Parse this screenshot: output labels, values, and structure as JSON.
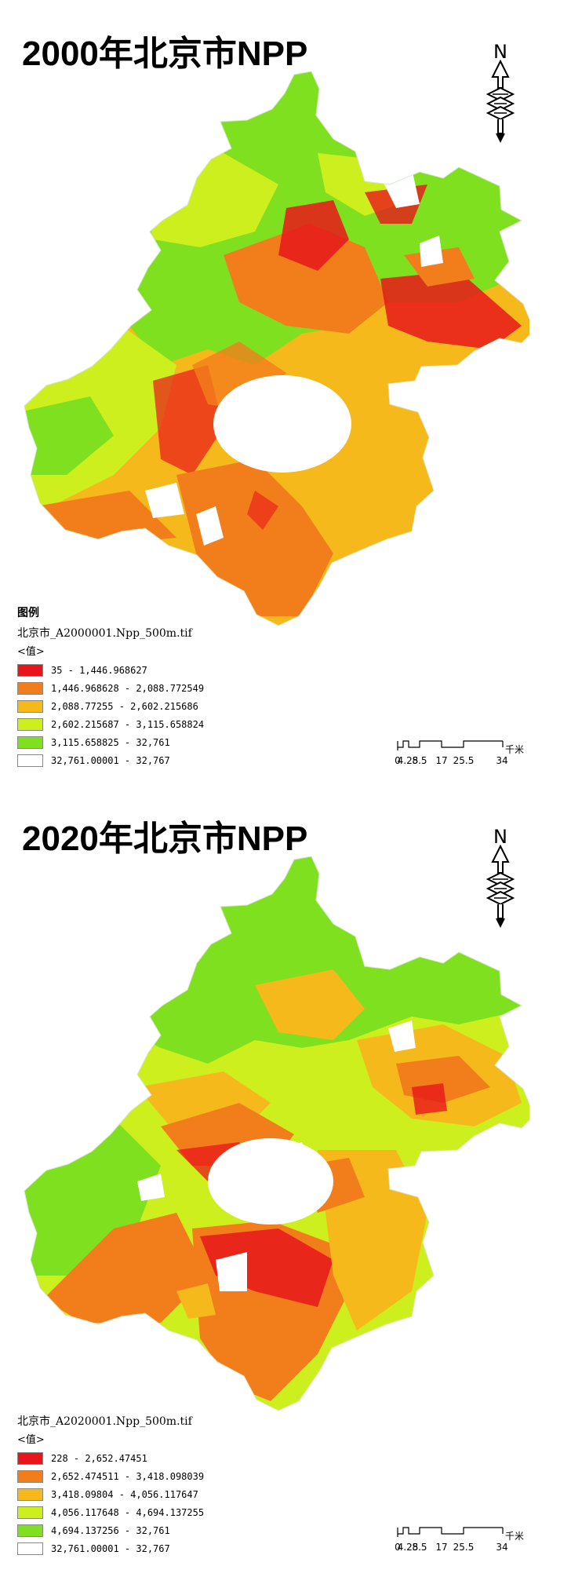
{
  "panels": [
    {
      "title": "2000年北京市NPP",
      "show_legend_heading": true,
      "legend_heading": "图例",
      "file": "北京市_A2000001.Npp_500m.tif",
      "field": "<值>",
      "classes": [
        {
          "label": "35 - 1,446.968627",
          "color": "#e8161a"
        },
        {
          "label": "1,446.968628 - 2,088.772549",
          "color": "#f27e1b"
        },
        {
          "label": "2,088.77255 - 2,602.215686",
          "color": "#f6b91c"
        },
        {
          "label": "2,602.215687 - 3,115.658824",
          "color": "#cdef1e"
        },
        {
          "label": "3,115.658825 - 32,761",
          "color": "#7ee01f"
        },
        {
          "label": "32,761.00001 - 32,767",
          "color": "#ffffff"
        }
      ]
    },
    {
      "title": "2020年北京市NPP",
      "show_legend_heading": false,
      "legend_heading": "",
      "file": "北京市_A2020001.Npp_500m.tif",
      "field": "<值>",
      "classes": [
        {
          "label": "228 - 2,652.47451",
          "color": "#e8161a"
        },
        {
          "label": "2,652.474511 - 3,418.098039",
          "color": "#f27e1b"
        },
        {
          "label": "3,418.09804 - 4,056.117647",
          "color": "#f6b91c"
        },
        {
          "label": "4,056.117648 - 4,694.137255",
          "color": "#cdef1e"
        },
        {
          "label": "4,694.137256 - 32,761",
          "color": "#7ee01f"
        },
        {
          "label": "32,761.00001 - 32,767",
          "color": "#ffffff"
        }
      ]
    }
  ],
  "north_label": "N",
  "scale_bar": {
    "ticks": [
      "0",
      "4.25",
      "8.5",
      "17",
      "25.5",
      "34"
    ],
    "unit": "千米"
  },
  "colors": {
    "red": "#e8161a",
    "orange": "#f27e1b",
    "yellow": "#f6b91c",
    "yellow_green": "#cdef1e",
    "green": "#7ee01f",
    "white": "#ffffff"
  }
}
